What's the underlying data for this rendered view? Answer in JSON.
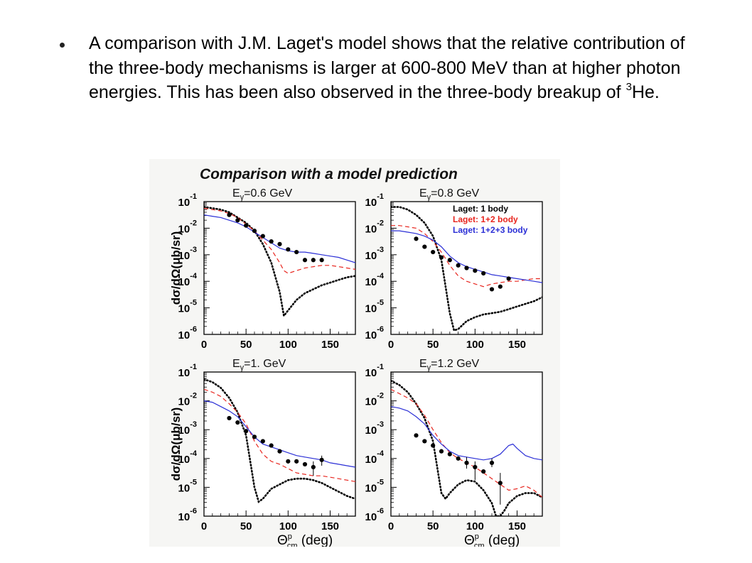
{
  "slide": {
    "bullet_text_main": "A comparison with J.M. Laget's model shows that the relative contribution of the three-body mechanisms is larger at 600-800 MeV than at higher photon energies. This has been also observed in the three-body breakup of ",
    "bullet_sup": "3",
    "bullet_text_end": "He."
  },
  "figure": {
    "title": "Comparison with a model prediction",
    "ylabel": "dσ/dΩ(μb/sr)",
    "xlabel": "Θ",
    "xlabel_sup": "p",
    "xlabel_sub": "cm",
    "xlabel_unit": "(deg)",
    "legend": [
      {
        "label_prefix": "Laget",
        "label_suffix": ": 1 body",
        "color": "#000000",
        "style": "dotted"
      },
      {
        "label_prefix": "Laget",
        "label_suffix": ": 1+2 body",
        "color": "#e8251e",
        "style": "dashed"
      },
      {
        "label_prefix": "Laget",
        "label_suffix": ": 1+2+3 body",
        "color": "#2b2fd6",
        "style": "solid"
      }
    ]
  },
  "chart_data": [
    {
      "type": "scatter",
      "title_sub": "γ",
      "title_prefix": "E",
      "title_value": "=0.6 GeV",
      "xlim": [
        0,
        180
      ],
      "ylim_log10": [
        -6,
        -1
      ],
      "yscale": "log",
      "x_ticks": [
        "0",
        "50",
        "100",
        "150"
      ],
      "y_ticks": [
        {
          "base": "10",
          "exp": "-1"
        },
        {
          "base": "10",
          "exp": "-2"
        },
        {
          "base": "10",
          "exp": "-3"
        },
        {
          "base": "10",
          "exp": "-4"
        },
        {
          "base": "10",
          "exp": "-5"
        },
        {
          "base": "10",
          "exp": "-6"
        }
      ],
      "points_x": [
        30,
        40,
        50,
        60,
        70,
        80,
        90,
        100,
        110,
        120,
        130,
        140
      ],
      "points_log10y": [
        -1.5,
        -1.7,
        -1.9,
        -2.1,
        -2.3,
        -2.5,
        -2.6,
        -2.8,
        -2.9,
        -3.2,
        -3.2,
        -3.2
      ],
      "error_bars": [],
      "series": [
        {
          "name": "Laget: 1 body",
          "style": "dotted",
          "color": "#000000",
          "x": [
            0,
            10,
            20,
            30,
            40,
            50,
            60,
            70,
            80,
            90,
            95,
            100,
            110,
            120,
            130,
            140,
            150,
            160,
            170,
            180
          ],
          "log10y": [
            -1.2,
            -1.25,
            -1.3,
            -1.4,
            -1.6,
            -1.8,
            -2.1,
            -2.6,
            -3.3,
            -4.4,
            -5.3,
            -5.1,
            -4.7,
            -4.45,
            -4.3,
            -4.15,
            -4.05,
            -3.95,
            -3.85,
            -3.8
          ]
        },
        {
          "name": "Laget: 1+2 body",
          "style": "dashed",
          "color": "#e8251e",
          "x": [
            0,
            10,
            20,
            30,
            40,
            50,
            60,
            70,
            80,
            90,
            95,
            100,
            110,
            120,
            130,
            140,
            150,
            160,
            170,
            180
          ],
          "log10y": [
            -1.25,
            -1.3,
            -1.35,
            -1.45,
            -1.6,
            -1.85,
            -2.1,
            -2.45,
            -2.8,
            -3.3,
            -3.6,
            -3.7,
            -3.6,
            -3.5,
            -3.45,
            -3.4,
            -3.4,
            -3.45,
            -3.5,
            -3.55
          ]
        },
        {
          "name": "Laget: 1+2+3 body",
          "style": "solid",
          "color": "#2b2fd6",
          "x": [
            0,
            10,
            20,
            30,
            40,
            50,
            60,
            70,
            80,
            90,
            100,
            110,
            120,
            130,
            140,
            150,
            160,
            170,
            180
          ],
          "log10y": [
            -1.5,
            -1.55,
            -1.6,
            -1.7,
            -1.8,
            -1.95,
            -2.15,
            -2.35,
            -2.55,
            -2.75,
            -2.85,
            -2.9,
            -2.9,
            -2.95,
            -3.0,
            -3.05,
            -3.1,
            -3.2,
            -3.3
          ]
        }
      ]
    },
    {
      "type": "scatter",
      "title_sub": "γ",
      "title_prefix": "E",
      "title_value": "=0.8 GeV",
      "xlim": [
        0,
        180
      ],
      "ylim_log10": [
        -6,
        -1
      ],
      "yscale": "log",
      "x_ticks": [
        "0",
        "50",
        "100",
        "150"
      ],
      "y_ticks": [
        {
          "base": "10",
          "exp": "-1"
        },
        {
          "base": "10",
          "exp": "-2"
        },
        {
          "base": "10",
          "exp": "-3"
        },
        {
          "base": "10",
          "exp": "-4"
        },
        {
          "base": "10",
          "exp": "-5"
        },
        {
          "base": "10",
          "exp": "-6"
        }
      ],
      "points_x": [
        30,
        40,
        50,
        60,
        70,
        80,
        90,
        100,
        110,
        120,
        130,
        140
      ],
      "points_log10y": [
        -2.4,
        -2.7,
        -2.9,
        -3.1,
        -3.2,
        -3.4,
        -3.5,
        -3.6,
        -3.7,
        -4.3,
        -4.2,
        -3.9
      ],
      "error_bars": [],
      "series": [
        {
          "name": "Laget: 1 body",
          "style": "dotted",
          "color": "#000000",
          "x": [
            0,
            10,
            20,
            30,
            40,
            50,
            60,
            65,
            70,
            75,
            80,
            90,
            100,
            110,
            120,
            130,
            140,
            150,
            160,
            170,
            180
          ],
          "log10y": [
            -1.2,
            -1.2,
            -1.3,
            -1.5,
            -1.8,
            -2.3,
            -3.2,
            -4.2,
            -5.2,
            -5.85,
            -5.8,
            -5.5,
            -5.35,
            -5.25,
            -5.2,
            -5.15,
            -5.05,
            -4.95,
            -4.85,
            -4.75,
            -4.6
          ]
        },
        {
          "name": "Laget: 1+2 body",
          "style": "dashed",
          "color": "#e8251e",
          "x": [
            0,
            10,
            20,
            30,
            40,
            50,
            60,
            70,
            80,
            90,
            100,
            110,
            120,
            130,
            140,
            150,
            160,
            170,
            180
          ],
          "log10y": [
            -1.9,
            -1.9,
            -1.95,
            -2.0,
            -2.2,
            -2.5,
            -2.9,
            -3.4,
            -3.8,
            -4.0,
            -4.1,
            -4.2,
            -4.1,
            -4.05,
            -4.0,
            -4.0,
            -3.95,
            -3.9,
            -3.9
          ]
        },
        {
          "name": "Laget: 1+2+3 body",
          "style": "solid",
          "color": "#2b2fd6",
          "x": [
            0,
            10,
            20,
            30,
            40,
            50,
            60,
            70,
            80,
            90,
            100,
            110,
            120,
            130,
            140,
            150,
            160,
            170,
            180
          ],
          "log10y": [
            -2.1,
            -2.1,
            -2.15,
            -2.2,
            -2.3,
            -2.45,
            -2.7,
            -3.05,
            -3.3,
            -3.45,
            -3.55,
            -3.65,
            -3.75,
            -3.8,
            -3.85,
            -3.9,
            -3.95,
            -4.0,
            -4.05
          ]
        }
      ]
    },
    {
      "type": "scatter",
      "title_sub": "γ",
      "title_prefix": "E",
      "title_value": "=1. GeV",
      "xlim": [
        0,
        180
      ],
      "ylim_log10": [
        -6,
        -1
      ],
      "yscale": "log",
      "x_ticks": [
        "0",
        "50",
        "100",
        "150"
      ],
      "y_ticks": [
        {
          "base": "10",
          "exp": "-1"
        },
        {
          "base": "10",
          "exp": "-2"
        },
        {
          "base": "10",
          "exp": "-3"
        },
        {
          "base": "10",
          "exp": "-4"
        },
        {
          "base": "10",
          "exp": "-5"
        },
        {
          "base": "10",
          "exp": "-6"
        }
      ],
      "points_x": [
        30,
        40,
        50,
        60,
        70,
        80,
        90,
        100,
        110,
        120,
        130,
        140
      ],
      "points_log10y": [
        -2.6,
        -2.75,
        -3.05,
        -3.25,
        -3.4,
        -3.55,
        -3.75,
        -4.1,
        -4.1,
        -4.2,
        -4.3,
        -4.05
      ],
      "error_bars": [
        {
          "x": 130,
          "lo": -4.6,
          "hi": -4.1
        },
        {
          "x": 140,
          "lo": -4.25,
          "hi": -3.9
        }
      ],
      "series": [
        {
          "name": "Laget: 1 body",
          "style": "dotted",
          "color": "#000000",
          "x": [
            0,
            10,
            20,
            30,
            40,
            50,
            55,
            60,
            65,
            70,
            80,
            90,
            100,
            110,
            120,
            130,
            140,
            150,
            160,
            170,
            180
          ],
          "log10y": [
            -1.25,
            -1.35,
            -1.55,
            -1.9,
            -2.4,
            -3.2,
            -4.1,
            -5.0,
            -5.5,
            -5.4,
            -5.05,
            -4.9,
            -4.75,
            -4.7,
            -4.7,
            -4.75,
            -4.85,
            -5.0,
            -5.15,
            -5.3,
            -5.4
          ]
        },
        {
          "name": "Laget: 1+2 body",
          "style": "dashed",
          "color": "#e8251e",
          "x": [
            0,
            10,
            20,
            30,
            40,
            50,
            60,
            70,
            80,
            90,
            100,
            110,
            120,
            130,
            140,
            150,
            160,
            170,
            180
          ],
          "log10y": [
            -1.6,
            -1.7,
            -1.85,
            -2.1,
            -2.4,
            -2.8,
            -3.4,
            -3.85,
            -4.1,
            -4.2,
            -4.35,
            -4.5,
            -4.55,
            -4.6,
            -4.6,
            -4.65,
            -4.7,
            -4.75,
            -4.8
          ]
        },
        {
          "name": "Laget: 1+2+3 body",
          "style": "solid",
          "color": "#2b2fd6",
          "x": [
            0,
            10,
            20,
            30,
            40,
            50,
            60,
            70,
            80,
            90,
            100,
            110,
            120,
            130,
            140,
            150,
            160,
            170,
            180
          ],
          "log10y": [
            -2.0,
            -2.05,
            -2.2,
            -2.35,
            -2.55,
            -2.9,
            -3.25,
            -3.5,
            -3.6,
            -3.7,
            -3.8,
            -3.9,
            -3.95,
            -4.0,
            -4.05,
            -4.15,
            -4.2,
            -4.25,
            -4.3
          ]
        }
      ]
    },
    {
      "type": "scatter",
      "title_sub": "γ",
      "title_prefix": "E",
      "title_value": "=1.2 GeV",
      "xlim": [
        0,
        180
      ],
      "ylim_log10": [
        -6,
        -1
      ],
      "yscale": "log",
      "x_ticks": [
        "0",
        "50",
        "100",
        "150"
      ],
      "y_ticks": [
        {
          "base": "10",
          "exp": "-1"
        },
        {
          "base": "10",
          "exp": "-2"
        },
        {
          "base": "10",
          "exp": "-3"
        },
        {
          "base": "10",
          "exp": "-4"
        },
        {
          "base": "10",
          "exp": "-5"
        },
        {
          "base": "10",
          "exp": "-6"
        }
      ],
      "points_x": [
        30,
        40,
        50,
        60,
        70,
        80,
        90,
        100,
        110,
        120,
        130
      ],
      "points_log10y": [
        -3.2,
        -3.4,
        -3.55,
        -3.75,
        -3.85,
        -4.0,
        -4.15,
        -4.3,
        -4.45,
        -4.15,
        -4.85
      ],
      "error_bars": [
        {
          "x": 90,
          "lo": -4.35,
          "hi": -3.95
        },
        {
          "x": 100,
          "lo": -4.75,
          "hi": -4.1
        },
        {
          "x": 120,
          "lo": -4.3,
          "hi": -4.0
        },
        {
          "x": 130,
          "lo": -5.6,
          "hi": -4.5
        }
      ],
      "series": [
        {
          "name": "Laget: 1 body",
          "style": "dotted",
          "color": "#000000",
          "x": [
            0,
            10,
            20,
            30,
            40,
            50,
            55,
            60,
            65,
            70,
            80,
            90,
            100,
            110,
            120,
            125,
            130,
            135,
            140,
            150,
            160,
            170,
            180
          ],
          "log10y": [
            -1.3,
            -1.45,
            -1.7,
            -2.1,
            -2.6,
            -3.4,
            -4.3,
            -5.2,
            -5.4,
            -5.2,
            -4.9,
            -4.75,
            -4.8,
            -5.1,
            -5.55,
            -6.0,
            -6.0,
            -5.8,
            -5.55,
            -5.3,
            -5.2,
            -5.2,
            -5.35
          ]
        },
        {
          "name": "Laget: 1+2 body",
          "style": "dashed",
          "color": "#e8251e",
          "x": [
            0,
            10,
            20,
            30,
            40,
            50,
            60,
            70,
            80,
            90,
            100,
            110,
            120,
            130,
            140,
            150,
            160,
            170,
            180
          ],
          "log10y": [
            -1.6,
            -1.75,
            -1.9,
            -2.1,
            -2.5,
            -3.0,
            -3.45,
            -3.8,
            -4.0,
            -4.15,
            -4.3,
            -4.5,
            -4.7,
            -4.9,
            -5.1,
            -5.05,
            -4.95,
            -5.1,
            -5.35
          ]
        },
        {
          "name": "Laget: 1+2+3 body",
          "style": "solid",
          "color": "#2b2fd6",
          "x": [
            0,
            10,
            20,
            30,
            40,
            50,
            60,
            70,
            80,
            90,
            100,
            110,
            120,
            130,
            140,
            145,
            150,
            160,
            170,
            180
          ],
          "log10y": [
            -2.2,
            -2.25,
            -2.35,
            -2.55,
            -2.8,
            -3.2,
            -3.5,
            -3.75,
            -3.9,
            -3.95,
            -4.0,
            -4.05,
            -4.0,
            -3.85,
            -3.55,
            -3.5,
            -3.65,
            -3.9,
            -4.0,
            -4.05
          ]
        }
      ]
    }
  ]
}
